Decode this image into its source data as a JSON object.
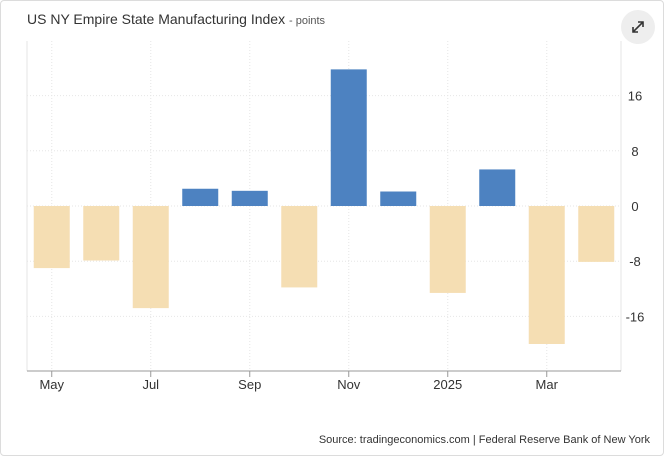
{
  "header": {
    "title": "US NY Empire State Manufacturing Index",
    "unit": "- points"
  },
  "footer": {
    "source": "Source: tradingeconomics.com | Federal Reserve Bank of New York"
  },
  "colors": {
    "positive": "#4d82c1",
    "negative": "#f5deb3",
    "grid": "#e6e6e6",
    "axis": "#999999"
  },
  "chart_data": {
    "type": "bar",
    "title": "US NY Empire State Manufacturing Index",
    "ylabel": "points",
    "xlabel": "",
    "categories": [
      "2024-05",
      "2024-06",
      "2024-07",
      "2024-08",
      "2024-09",
      "2024-10",
      "2024-11",
      "2024-12",
      "2025-01",
      "2025-02",
      "2025-03",
      "2025-04"
    ],
    "values": [
      -9.0,
      -7.9,
      -14.8,
      2.5,
      2.2,
      -11.8,
      19.8,
      2.1,
      -12.6,
      5.3,
      -20.0,
      -8.1
    ],
    "ylim": [
      -24,
      24
    ],
    "yticks": [
      -16,
      -8,
      0,
      8,
      16
    ],
    "xtick_labels": [
      {
        "index": 0,
        "label": "May"
      },
      {
        "index": 2,
        "label": "Jul"
      },
      {
        "index": 4,
        "label": "Sep"
      },
      {
        "index": 6,
        "label": "Nov"
      },
      {
        "index": 8,
        "label": "2025"
      },
      {
        "index": 10,
        "label": "Mar"
      }
    ],
    "grid": true,
    "legend": "none"
  }
}
